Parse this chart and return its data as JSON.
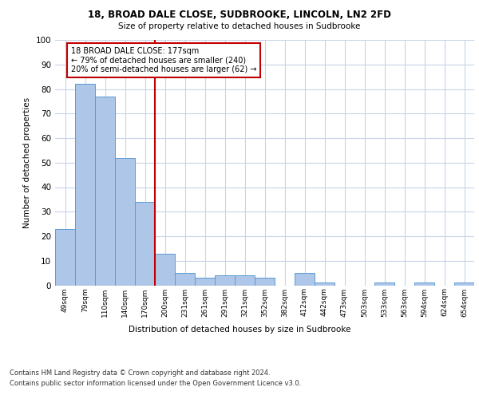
{
  "title_line1": "18, BROAD DALE CLOSE, SUDBROOKE, LINCOLN, LN2 2FD",
  "title_line2": "Size of property relative to detached houses in Sudbrooke",
  "xlabel": "Distribution of detached houses by size in Sudbrooke",
  "ylabel": "Number of detached properties",
  "categories": [
    "49sqm",
    "79sqm",
    "110sqm",
    "140sqm",
    "170sqm",
    "200sqm",
    "231sqm",
    "261sqm",
    "291sqm",
    "321sqm",
    "352sqm",
    "382sqm",
    "412sqm",
    "442sqm",
    "473sqm",
    "503sqm",
    "533sqm",
    "563sqm",
    "594sqm",
    "624sqm",
    "654sqm"
  ],
  "values": [
    23,
    82,
    77,
    52,
    34,
    13,
    5,
    3,
    4,
    4,
    3,
    0,
    5,
    1,
    0,
    0,
    1,
    0,
    1,
    0,
    1
  ],
  "bar_color": "#aec6e8",
  "bar_edge_color": "#5b9bd5",
  "vline_x": 4.5,
  "vline_color": "#c00000",
  "annotation_text": "18 BROAD DALE CLOSE: 177sqm\n← 79% of detached houses are smaller (240)\n20% of semi-detached houses are larger (62) →",
  "annotation_box_color": "#c00000",
  "ylim": [
    0,
    100
  ],
  "yticks": [
    0,
    10,
    20,
    30,
    40,
    50,
    60,
    70,
    80,
    90,
    100
  ],
  "background_color": "#ffffff",
  "grid_color": "#c8d4e8",
  "footer_line1": "Contains HM Land Registry data © Crown copyright and database right 2024.",
  "footer_line2": "Contains public sector information licensed under the Open Government Licence v3.0."
}
